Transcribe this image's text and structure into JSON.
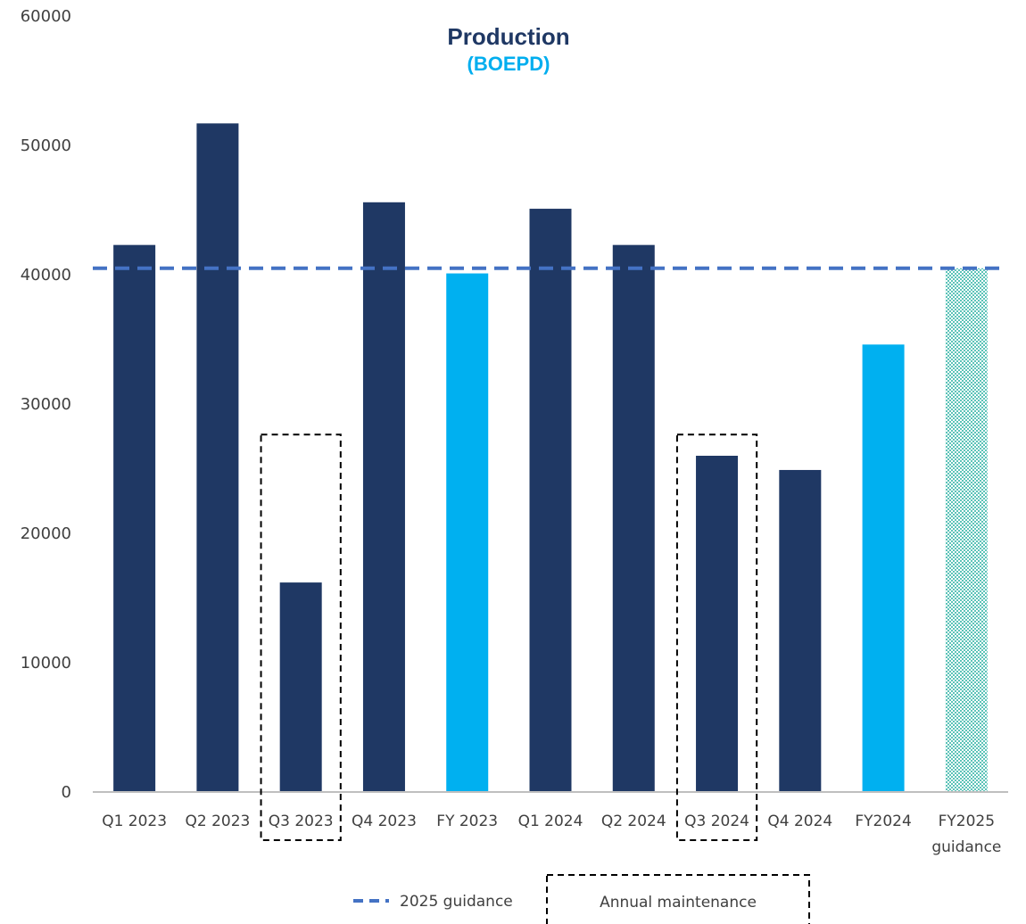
{
  "chart_data": {
    "type": "bar",
    "title": "Production",
    "subtitle": "(BOEPD)",
    "categories": [
      [
        "Q1 2023"
      ],
      [
        "Q2 2023"
      ],
      [
        "Q3 2023"
      ],
      [
        "Q4 2023"
      ],
      [
        "FY 2023"
      ],
      [
        "Q1 2024"
      ],
      [
        "Q2 2024"
      ],
      [
        "Q3 2024"
      ],
      [
        "Q4 2024"
      ],
      [
        "FY2024"
      ],
      [
        "FY2025",
        "guidance"
      ]
    ],
    "values": [
      42300,
      51700,
      16200,
      45600,
      40100,
      45100,
      42300,
      26000,
      24900,
      34600,
      40500
    ],
    "bar_styles": [
      "quarter",
      "quarter",
      "quarter",
      "quarter",
      "fy",
      "quarter",
      "quarter",
      "quarter",
      "quarter",
      "fy",
      "guidance"
    ],
    "ylim": [
      0,
      60000
    ],
    "yticks": [
      0,
      10000,
      20000,
      30000,
      40000,
      50000,
      60000
    ],
    "guidance_line": 40500,
    "highlighted_categories": [
      2,
      7
    ],
    "highlight_top_value": 27500,
    "colors": {
      "quarter": "#1f3864",
      "fy": "#00b0f0",
      "guidance": "#7fd3c9",
      "guidance_line": "#4472c4",
      "axis": "#bfbfbf"
    },
    "legend": [
      {
        "label": "2025  guidance",
        "style": "dashed-line"
      },
      {
        "label": "Annual maintenance",
        "style": "dashed-box"
      }
    ],
    "legend_position": "bottom",
    "grid": false
  }
}
